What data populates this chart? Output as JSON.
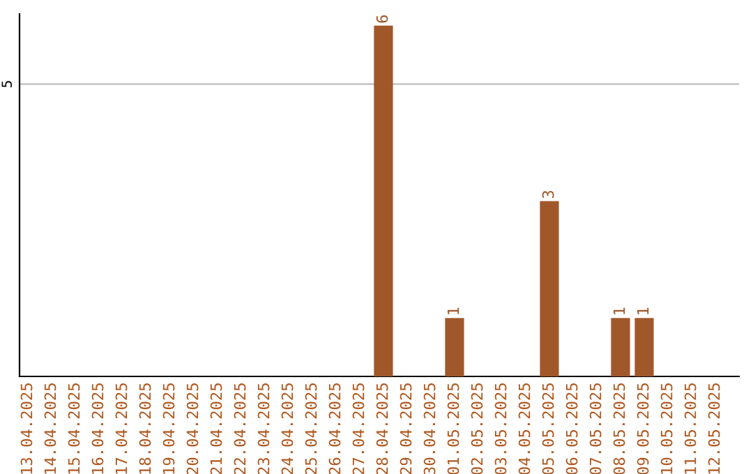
{
  "chart_data": {
    "type": "bar",
    "categories": [
      "13.04.2025",
      "14.04.2025",
      "15.04.2025",
      "16.04.2025",
      "17.04.2025",
      "18.04.2025",
      "19.04.2025",
      "20.04.2025",
      "21.04.2025",
      "22.04.2025",
      "23.04.2025",
      "24.04.2025",
      "25.04.2025",
      "26.04.2025",
      "27.04.2025",
      "28.04.2025",
      "29.04.2025",
      "30.04.2025",
      "01.05.2025",
      "02.05.2025",
      "03.05.2025",
      "04.05.2025",
      "05.05.2025",
      "06.05.2025",
      "07.05.2025",
      "08.05.2025",
      "09.05.2025",
      "10.05.2025",
      "11.05.2025",
      "12.05.2025"
    ],
    "values": [
      null,
      null,
      null,
      null,
      null,
      null,
      null,
      null,
      null,
      null,
      null,
      null,
      null,
      null,
      null,
      6,
      null,
      null,
      1,
      null,
      null,
      null,
      3,
      null,
      null,
      1,
      1,
      null,
      null,
      null
    ],
    "data_labels": true,
    "color": "#a0582a",
    "ylim": [
      0,
      6.2
    ],
    "yticks": [
      5
    ],
    "grid": "y"
  }
}
